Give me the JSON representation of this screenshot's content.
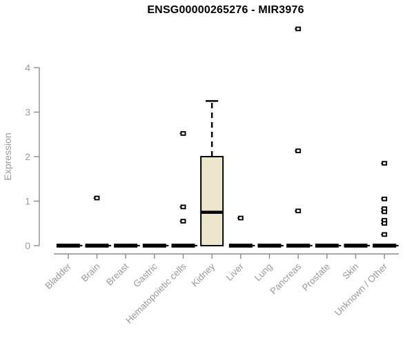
{
  "chart": {
    "title": "ENSG00000265276 - MIR3976"
  },
  "chart_data": {
    "type": "boxplot",
    "title": "ENSG00000265276 - MIR3976",
    "xlabel": "",
    "ylabel": "Expression",
    "ylim": [
      0,
      4
    ],
    "yticks": [
      0,
      1,
      2,
      3,
      4
    ],
    "grid": false,
    "legend": false,
    "categories": [
      "Bladder",
      "Brain",
      "Breast",
      "Gastric",
      "Hematopoietic cells",
      "Kidney",
      "Liver",
      "Lung",
      "Pancreas",
      "Prostate",
      "Skin",
      "Unknown / Other"
    ],
    "boxes": [
      {
        "category": "Bladder",
        "q1": 0,
        "median": 0,
        "q3": 0,
        "whisker_low": 0,
        "whisker_high": 0,
        "outliers": []
      },
      {
        "category": "Brain",
        "q1": 0,
        "median": 0,
        "q3": 0,
        "whisker_low": 0,
        "whisker_high": 0,
        "outliers": [
          1.07
        ]
      },
      {
        "category": "Breast",
        "q1": 0,
        "median": 0,
        "q3": 0,
        "whisker_low": 0,
        "whisker_high": 0,
        "outliers": []
      },
      {
        "category": "Gastric",
        "q1": 0,
        "median": 0,
        "q3": 0,
        "whisker_low": 0,
        "whisker_high": 0,
        "outliers": []
      },
      {
        "category": "Hematopoietic cells",
        "q1": 0,
        "median": 0,
        "q3": 0,
        "whisker_low": 0,
        "whisker_high": 0,
        "outliers": [
          2.52,
          0.87,
          0.55
        ]
      },
      {
        "category": "Kidney",
        "q1": 0,
        "median": 0.75,
        "q3": 2.0,
        "whisker_low": 0,
        "whisker_high": 3.25,
        "outliers": []
      },
      {
        "category": "Liver",
        "q1": 0,
        "median": 0,
        "q3": 0,
        "whisker_low": 0,
        "whisker_high": 0,
        "outliers": [
          0.62
        ]
      },
      {
        "category": "Lung",
        "q1": 0,
        "median": 0,
        "q3": 0,
        "whisker_low": 0,
        "whisker_high": 0,
        "outliers": []
      },
      {
        "category": "Pancreas",
        "q1": 0,
        "median": 0,
        "q3": 0,
        "whisker_low": 0,
        "whisker_high": 0,
        "outliers": [
          4.87,
          2.13,
          0.78
        ]
      },
      {
        "category": "Prostate",
        "q1": 0,
        "median": 0,
        "q3": 0,
        "whisker_low": 0,
        "whisker_high": 0,
        "outliers": []
      },
      {
        "category": "Skin",
        "q1": 0,
        "median": 0,
        "q3": 0,
        "whisker_low": 0,
        "whisker_high": 0,
        "outliers": []
      },
      {
        "category": "Unknown / Other",
        "q1": 0,
        "median": 0,
        "q3": 0,
        "whisker_low": 0,
        "whisker_high": 0,
        "outliers": [
          1.85,
          1.05,
          0.83,
          0.76,
          0.57,
          0.5,
          0.25
        ]
      }
    ],
    "colors": {
      "box_fill": "#ECE7CD",
      "box_stroke": "#000000",
      "flat_box": "#000000",
      "axis": "#888888",
      "labels": "#999999",
      "title": "#000000",
      "background": "#ffffff"
    }
  }
}
